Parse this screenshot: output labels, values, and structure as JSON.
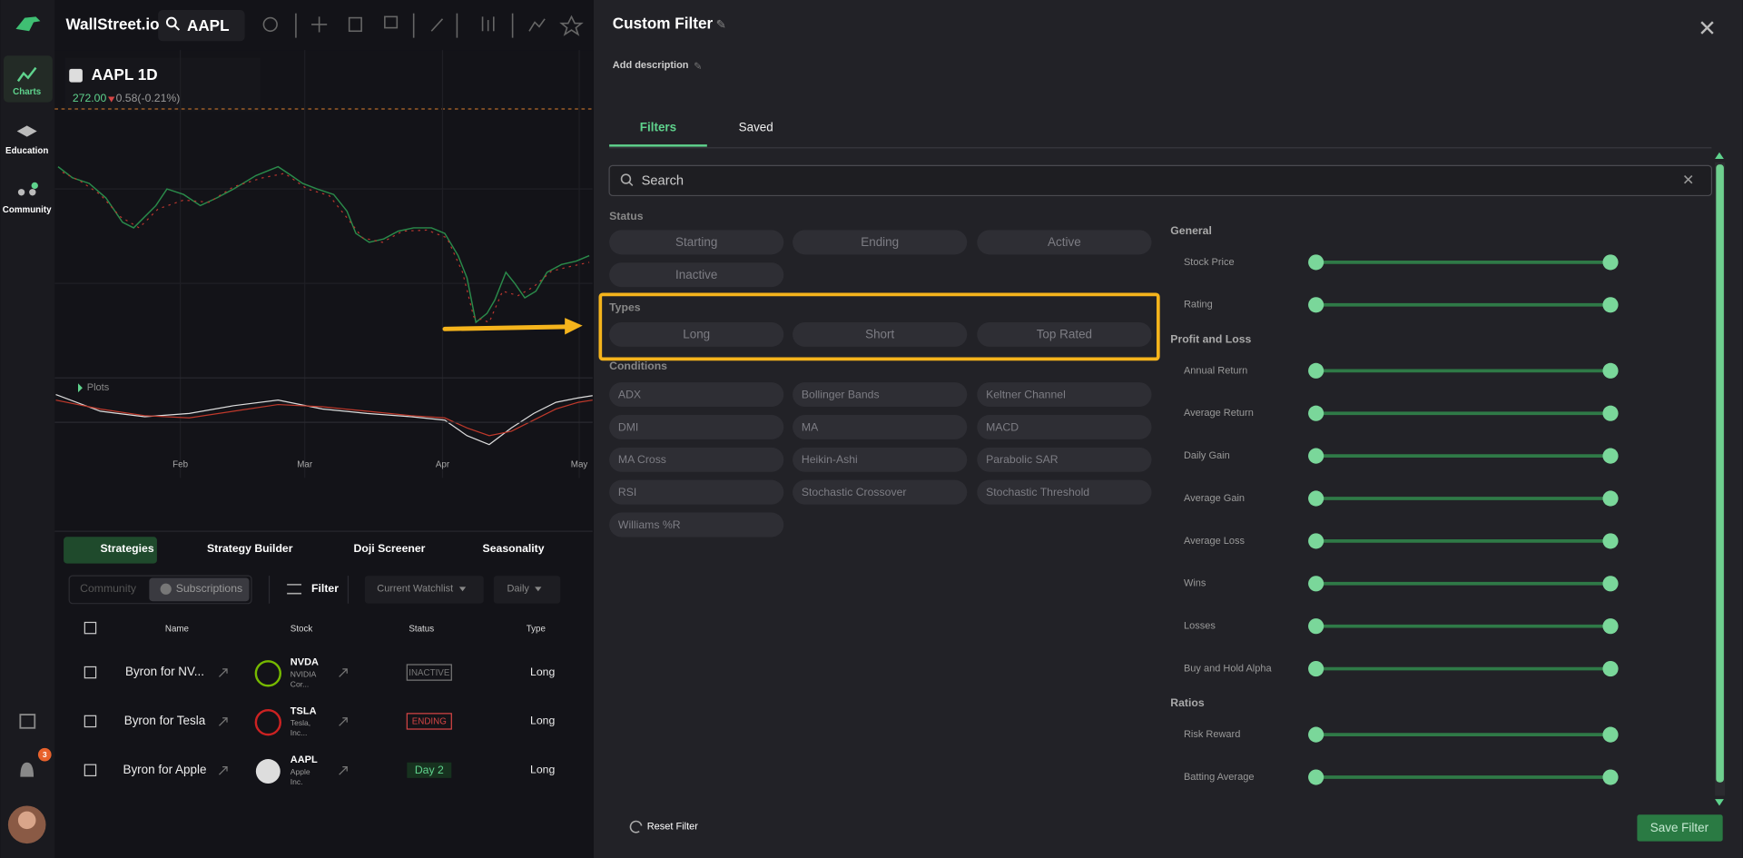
{
  "app": {
    "brand": "WallStreet.io",
    "symbol": "AAPL"
  },
  "sidebar": {
    "items": [
      "Charts",
      "Education",
      "Community"
    ],
    "notification_count": "3"
  },
  "chart": {
    "title": "AAPL 1D",
    "price": "272.00",
    "change": "0.58(-0.21%)",
    "panel": "Plots",
    "months": [
      "Feb",
      "Mar",
      "Apr",
      "May"
    ]
  },
  "tabs": [
    "Strategies",
    "Strategy Builder",
    "Doji Screener",
    "Seasonality"
  ],
  "toolbar": {
    "scope": [
      "Community",
      "Subscriptions"
    ],
    "filter": "Filter",
    "watchlist": "Current Watchlist",
    "interval": "Daily"
  },
  "table": {
    "headers": [
      "Name",
      "Stock",
      "Status",
      "Type"
    ],
    "rows": [
      {
        "name": "Byron for NV...",
        "ticker": "NVDA",
        "company": [
          "NVIDIA",
          "Cor..."
        ],
        "status": "INACTIVE",
        "type": "Long"
      },
      {
        "name": "Byron for Tesla",
        "ticker": "TSLA",
        "company": [
          "Tesla,",
          "Inc..."
        ],
        "status": "ENDING",
        "type": "Long"
      },
      {
        "name": "Byron for Apple",
        "ticker": "AAPL",
        "company": [
          "Apple",
          "Inc."
        ],
        "status": "Day 2",
        "type": "Long"
      }
    ]
  },
  "modal": {
    "title": "Custom Filter",
    "description": "Add description",
    "tabs": [
      "Filters",
      "Saved"
    ],
    "search_placeholder": "Search",
    "groups": [
      {
        "label": "Status",
        "options": [
          "Starting",
          "Ending",
          "Active",
          "Inactive"
        ]
      },
      {
        "label": "Types",
        "options": [
          "Long",
          "Short",
          "Top Rated"
        ]
      },
      {
        "label": "Conditions",
        "options": [
          "ADX",
          "Bollinger Bands",
          "Keltner Channel",
          "DMI",
          "MA",
          "MACD",
          "MA Cross",
          "Heikin-Ashi",
          "Parabolic SAR",
          "RSI",
          "Stochastic Crossover",
          "Stochastic Threshold",
          "Williams %R"
        ]
      }
    ],
    "ranges": [
      {
        "label": "General",
        "items": [
          "Stock Price",
          "Rating"
        ]
      },
      {
        "label": "Profit and Loss",
        "items": [
          "Annual Return",
          "Average Return",
          "Daily Gain",
          "Average Gain",
          "Average Loss",
          "Wins",
          "Losses",
          "Buy and Hold Alpha"
        ]
      },
      {
        "label": "Ratios",
        "items": [
          "Risk Reward",
          "Batting Average"
        ]
      }
    ],
    "reset": "Reset Filter",
    "save": "Save Filter"
  }
}
